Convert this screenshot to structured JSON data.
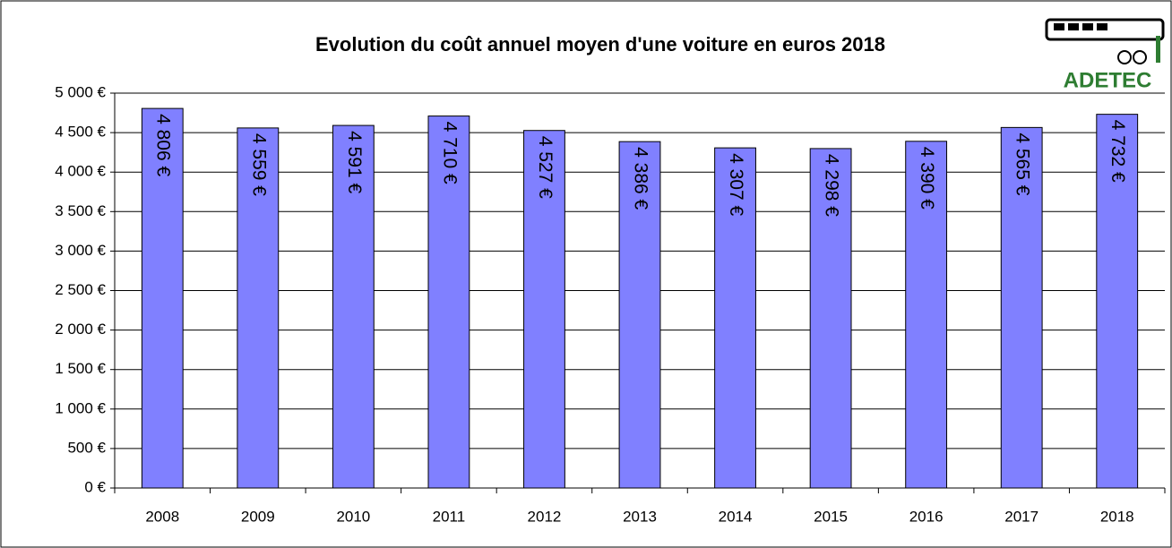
{
  "chart_data": {
    "type": "bar",
    "title": "Evolution du coût annuel moyen d'une voiture en euros 2018",
    "categories": [
      "2008",
      "2009",
      "2010",
      "2011",
      "2012",
      "2013",
      "2014",
      "2015",
      "2016",
      "2017",
      "2018"
    ],
    "values": [
      4806,
      4559,
      4591,
      4710,
      4527,
      4386,
      4307,
      4298,
      4390,
      4565,
      4732
    ],
    "value_labels": [
      "4 806 €",
      "4 559 €",
      "4 591 €",
      "4 710 €",
      "4 527 €",
      "4 386 €",
      "4 307 €",
      "4 298 €",
      "4 390 €",
      "4 565 €",
      "4 732 €"
    ],
    "color": "#8080ff",
    "ylim": [
      0,
      5000
    ],
    "yticks": [
      {
        "value": 0,
        "label": "0 €"
      },
      {
        "value": 500,
        "label": "500 €"
      },
      {
        "value": 1000,
        "label": "1 000 €"
      },
      {
        "value": 1500,
        "label": "1 500 €"
      },
      {
        "value": 2000,
        "label": "2 000 €"
      },
      {
        "value": 2500,
        "label": "2 500 €"
      },
      {
        "value": 3000,
        "label": "3 000 €"
      },
      {
        "value": 3500,
        "label": "3 500 €"
      },
      {
        "value": 4000,
        "label": "4 000 €"
      },
      {
        "value": 4500,
        "label": "4 500 €"
      },
      {
        "value": 5000,
        "label": "5 000 €"
      }
    ],
    "grid": true
  },
  "logo": {
    "text": "ADETEC"
  }
}
